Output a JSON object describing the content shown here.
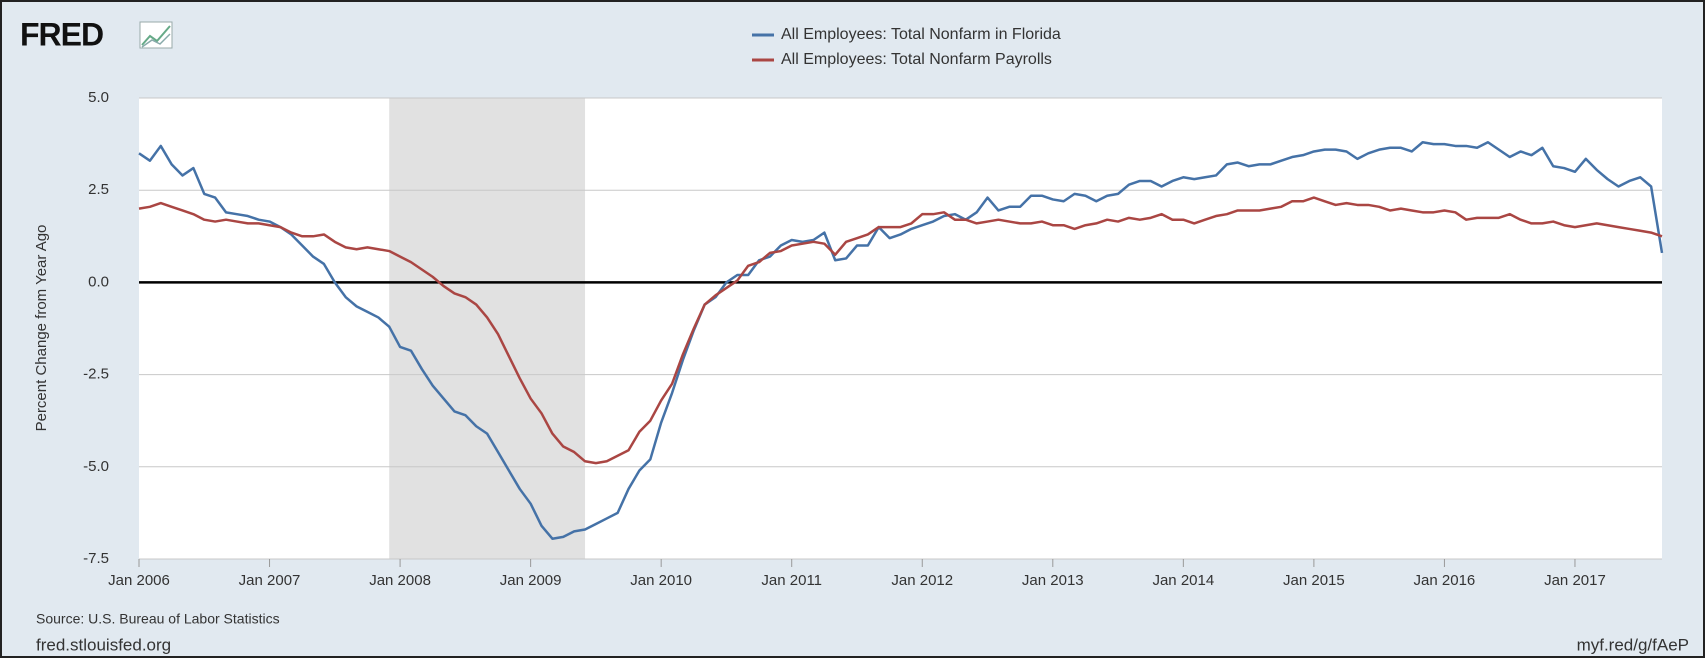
{
  "chart_data": {
    "type": "line",
    "logo": "FRED",
    "series": [
      {
        "name": "All Employees: Total Nonfarm in Florida",
        "color": "#4572a7",
        "values": [
          3.5,
          3.3,
          3.7,
          3.2,
          2.9,
          3.1,
          2.4,
          2.3,
          1.9,
          1.85,
          1.8,
          1.7,
          1.65,
          1.5,
          1.3,
          1.0,
          0.7,
          0.5,
          0.0,
          -0.4,
          -0.65,
          -0.8,
          -0.95,
          -1.2,
          -1.75,
          -1.85,
          -2.35,
          -2.8,
          -3.15,
          -3.5,
          -3.6,
          -3.9,
          -4.1,
          -4.6,
          -5.1,
          -5.6,
          -6.0,
          -6.6,
          -6.95,
          -6.9,
          -6.75,
          -6.7,
          -6.55,
          -6.4,
          -6.25,
          -5.6,
          -5.1,
          -4.8,
          -3.8,
          -3.0,
          -2.1,
          -1.3,
          -0.6,
          -0.4,
          0.0,
          0.2,
          0.2,
          0.6,
          0.7,
          1.0,
          1.15,
          1.1,
          1.15,
          1.35,
          0.6,
          0.65,
          1.0,
          1.0,
          1.5,
          1.2,
          1.3,
          1.45,
          1.55,
          1.65,
          1.8,
          1.85,
          1.7,
          1.9,
          2.3,
          1.95,
          2.05,
          2.05,
          2.35,
          2.35,
          2.25,
          2.2,
          2.4,
          2.35,
          2.2,
          2.35,
          2.4,
          2.65,
          2.75,
          2.75,
          2.6,
          2.75,
          2.85,
          2.8,
          2.85,
          2.9,
          3.2,
          3.25,
          3.15,
          3.2,
          3.2,
          3.3,
          3.4,
          3.45,
          3.55,
          3.6,
          3.6,
          3.55,
          3.35,
          3.5,
          3.6,
          3.65,
          3.65,
          3.55,
          3.8,
          3.75,
          3.75,
          3.7,
          3.7,
          3.65,
          3.8,
          3.6,
          3.4,
          3.55,
          3.45,
          3.65,
          3.15,
          3.1,
          3.0,
          3.35,
          3.05,
          2.8,
          2.6,
          2.75,
          2.85,
          2.6,
          0.8
        ]
      },
      {
        "name": "All Employees: Total Nonfarm Payrolls",
        "color": "#aa4643",
        "values": [
          2.0,
          2.05,
          2.15,
          2.05,
          1.95,
          1.85,
          1.7,
          1.65,
          1.7,
          1.65,
          1.6,
          1.6,
          1.55,
          1.5,
          1.35,
          1.25,
          1.25,
          1.3,
          1.1,
          0.95,
          0.9,
          0.95,
          0.9,
          0.85,
          0.7,
          0.55,
          0.35,
          0.15,
          -0.1,
          -0.3,
          -0.4,
          -0.6,
          -0.95,
          -1.4,
          -2.0,
          -2.6,
          -3.15,
          -3.55,
          -4.1,
          -4.45,
          -4.6,
          -4.85,
          -4.9,
          -4.85,
          -4.7,
          -4.55,
          -4.05,
          -3.75,
          -3.2,
          -2.75,
          -1.95,
          -1.25,
          -0.6,
          -0.35,
          -0.15,
          0.05,
          0.45,
          0.55,
          0.8,
          0.85,
          1.0,
          1.05,
          1.1,
          1.05,
          0.75,
          1.1,
          1.2,
          1.3,
          1.5,
          1.5,
          1.5,
          1.6,
          1.85,
          1.85,
          1.9,
          1.7,
          1.7,
          1.6,
          1.65,
          1.7,
          1.65,
          1.6,
          1.6,
          1.65,
          1.55,
          1.55,
          1.45,
          1.55,
          1.6,
          1.7,
          1.65,
          1.75,
          1.7,
          1.75,
          1.85,
          1.7,
          1.7,
          1.6,
          1.7,
          1.8,
          1.85,
          1.95,
          1.95,
          1.95,
          2.0,
          2.05,
          2.2,
          2.2,
          2.3,
          2.2,
          2.1,
          2.15,
          2.1,
          2.1,
          2.05,
          1.95,
          2.0,
          1.95,
          1.9,
          1.9,
          1.95,
          1.9,
          1.7,
          1.75,
          1.75,
          1.75,
          1.85,
          1.7,
          1.6,
          1.6,
          1.65,
          1.55,
          1.5,
          1.55,
          1.6,
          1.55,
          1.5,
          1.45,
          1.4,
          1.35,
          1.25
        ]
      }
    ],
    "x": [
      "2006-01",
      "2006-02",
      "2006-03",
      "2006-04",
      "2006-05",
      "2006-06",
      "2006-07",
      "2006-08",
      "2006-09",
      "2006-10",
      "2006-11",
      "2006-12",
      "2007-01",
      "2007-02",
      "2007-03",
      "2007-04",
      "2007-05",
      "2007-06",
      "2007-07",
      "2007-08",
      "2007-09",
      "2007-10",
      "2007-11",
      "2007-12",
      "2008-01",
      "2008-02",
      "2008-03",
      "2008-04",
      "2008-05",
      "2008-06",
      "2008-07",
      "2008-08",
      "2008-09",
      "2008-10",
      "2008-11",
      "2008-12",
      "2009-01",
      "2009-02",
      "2009-03",
      "2009-04",
      "2009-05",
      "2009-06",
      "2009-07",
      "2009-08",
      "2009-09",
      "2009-10",
      "2009-11",
      "2009-12",
      "2010-01",
      "2010-02",
      "2010-03",
      "2010-04",
      "2010-05",
      "2010-06",
      "2010-07",
      "2010-08",
      "2010-09",
      "2010-10",
      "2010-11",
      "2010-12",
      "2011-01",
      "2011-02",
      "2011-03",
      "2011-04",
      "2011-05",
      "2011-06",
      "2011-07",
      "2011-08",
      "2011-09",
      "2011-10",
      "2011-11",
      "2011-12",
      "2012-01",
      "2012-02",
      "2012-03",
      "2012-04",
      "2012-05",
      "2012-06",
      "2012-07",
      "2012-08",
      "2012-09",
      "2012-10",
      "2012-11",
      "2012-12",
      "2013-01",
      "2013-02",
      "2013-03",
      "2013-04",
      "2013-05",
      "2013-06",
      "2013-07",
      "2013-08",
      "2013-09",
      "2013-10",
      "2013-11",
      "2013-12",
      "2014-01",
      "2014-02",
      "2014-03",
      "2014-04",
      "2014-05",
      "2014-06",
      "2014-07",
      "2014-08",
      "2014-09",
      "2014-10",
      "2014-11",
      "2014-12",
      "2015-01",
      "2015-02",
      "2015-03",
      "2015-04",
      "2015-05",
      "2015-06",
      "2015-07",
      "2015-08",
      "2015-09",
      "2015-10",
      "2015-11",
      "2015-12",
      "2016-01",
      "2016-02",
      "2016-03",
      "2016-04",
      "2016-05",
      "2016-06",
      "2016-07",
      "2016-08",
      "2016-09",
      "2016-10",
      "2016-11",
      "2016-12",
      "2017-01",
      "2017-02",
      "2017-03",
      "2017-04",
      "2017-05",
      "2017-06",
      "2017-07",
      "2017-08",
      "2017-09"
    ],
    "xlim": [
      "2006-01",
      "2017-09"
    ],
    "xticks": [
      {
        "value": "2006-01",
        "label": "Jan 2006"
      },
      {
        "value": "2007-01",
        "label": "Jan 2007"
      },
      {
        "value": "2008-01",
        "label": "Jan 2008"
      },
      {
        "value": "2009-01",
        "label": "Jan 2009"
      },
      {
        "value": "2010-01",
        "label": "Jan 2010"
      },
      {
        "value": "2011-01",
        "label": "Jan 2011"
      },
      {
        "value": "2012-01",
        "label": "Jan 2012"
      },
      {
        "value": "2013-01",
        "label": "Jan 2013"
      },
      {
        "value": "2014-01",
        "label": "Jan 2014"
      },
      {
        "value": "2015-01",
        "label": "Jan 2015"
      },
      {
        "value": "2016-01",
        "label": "Jan 2016"
      },
      {
        "value": "2017-01",
        "label": "Jan 2017"
      }
    ],
    "ylim": [
      -7.5,
      5
    ],
    "yticks": [
      -7.5,
      {
        "value": -5,
        "label": "-5.0"
      },
      -2.5,
      {
        "value": 0,
        "label": "0.0"
      },
      2.5,
      {
        "value": 5,
        "label": "5.0"
      }
    ],
    "ylabel": "Percent Change from Year Ago",
    "grid": true,
    "recessions": [
      {
        "start": "2007-12",
        "end": "2009-06"
      }
    ],
    "source": "Source: U.S. Bureau of Labor Statistics",
    "site": "fred.stlouisfed.org",
    "link": "myf.red/g/fAeP"
  }
}
